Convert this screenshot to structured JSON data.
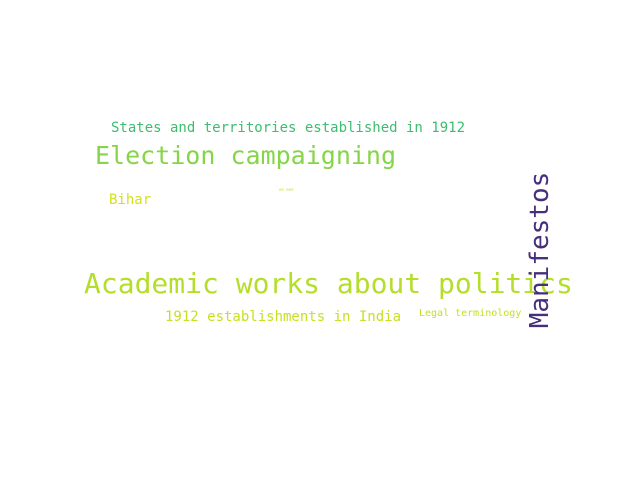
{
  "word_cloud": {
    "words": {
      "states": {
        "text": "States and territories established in 1912",
        "color": "#3dbd70"
      },
      "election": {
        "text": "Election campaigning",
        "color": "#86d549"
      },
      "tiny": {
        "text": "ee eee",
        "color": "#c6df2c"
      },
      "bihar": {
        "text": "Bihar",
        "color": "#d4e21a"
      },
      "academic": {
        "text": "Academic works about politics",
        "color": "#b5de2b"
      },
      "establishments": {
        "text": "1912 establishments in India",
        "color": "#c8e020"
      },
      "legal": {
        "text": "Legal terminology",
        "color": "#c2df23"
      },
      "manifestos": {
        "text": "Manifestos",
        "color": "#472f7d"
      }
    }
  }
}
